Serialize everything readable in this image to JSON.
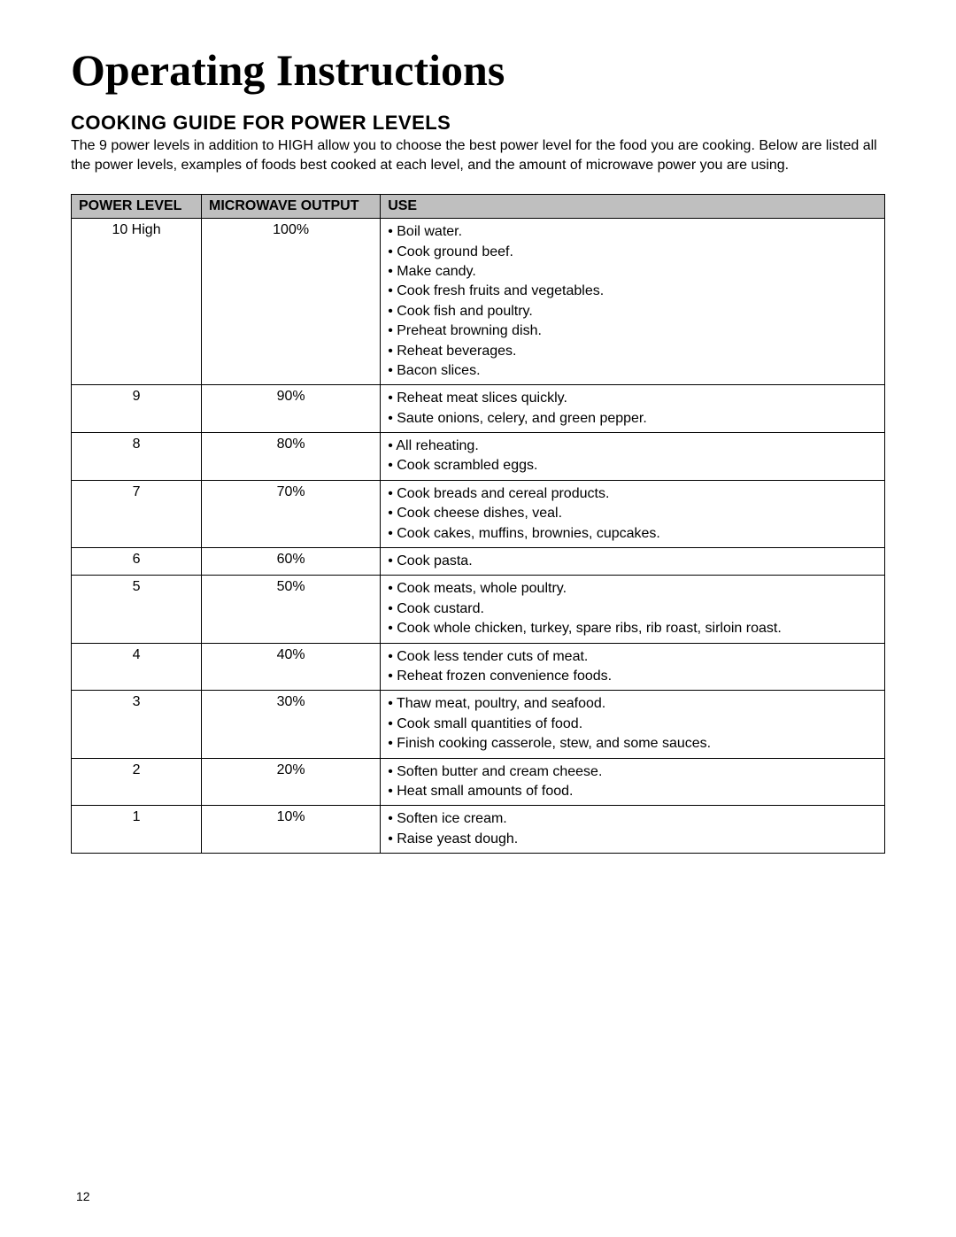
{
  "page": {
    "title": "Operating Instructions",
    "section_heading": "COOKING GUIDE FOR POWER LEVELS",
    "intro": "The 9 power levels in addition to HIGH allow you to choose the best power level for the food you are cooking. Below are listed all the power levels, examples of foods best cooked at each level, and the amount of microwave power you are using.",
    "page_number": "12"
  },
  "table": {
    "headers": {
      "power_level": "POWER LEVEL",
      "microwave_output": "MICROWAVE OUTPUT",
      "use": "USE"
    },
    "column_widths_pct": [
      16,
      22,
      62
    ],
    "header_bg": "#bfbfbf",
    "border_color": "#000000",
    "rows": [
      {
        "power_level": "10 High",
        "output": "100%",
        "uses": [
          "Boil water.",
          "Cook ground beef.",
          "Make candy.",
          "Cook fresh fruits and vegetables.",
          "Cook fish and poultry.",
          "Preheat browning dish.",
          "Reheat beverages.",
          "Bacon slices."
        ]
      },
      {
        "power_level": "9",
        "output": "90%",
        "uses": [
          "Reheat meat slices quickly.",
          "Saute onions, celery, and green pepper."
        ]
      },
      {
        "power_level": "8",
        "output": "80%",
        "uses": [
          "All reheating.",
          "Cook scrambled eggs."
        ]
      },
      {
        "power_level": "7",
        "output": "70%",
        "uses": [
          "Cook breads and cereal products.",
          "Cook cheese dishes, veal.",
          "Cook cakes, muffins, brownies, cupcakes."
        ]
      },
      {
        "power_level": "6",
        "output": "60%",
        "uses": [
          "Cook pasta."
        ]
      },
      {
        "power_level": "5",
        "output": "50%",
        "uses": [
          "Cook meats, whole poultry.",
          "Cook custard.",
          "Cook whole chicken, turkey, spare ribs, rib roast, sirloin roast."
        ]
      },
      {
        "power_level": "4",
        "output": "40%",
        "uses": [
          "Cook less tender cuts of meat.",
          "Reheat frozen convenience foods."
        ]
      },
      {
        "power_level": "3",
        "output": "30%",
        "uses": [
          "Thaw meat, poultry, and seafood.",
          "Cook small quantities of food.",
          "Finish cooking casserole, stew, and some sauces."
        ]
      },
      {
        "power_level": "2",
        "output": "20%",
        "uses": [
          "Soften butter and cream cheese.",
          "Heat small amounts of food."
        ]
      },
      {
        "power_level": "1",
        "output": "10%",
        "uses": [
          "Soften ice cream.",
          "Raise yeast dough."
        ]
      }
    ]
  },
  "style": {
    "background_color": "#ffffff",
    "text_color": "#000000",
    "title_font": "Times New Roman",
    "title_fontsize_pt": 38,
    "body_font": "Arial",
    "body_fontsize_pt": 12,
    "heading_fontsize_pt": 17
  }
}
